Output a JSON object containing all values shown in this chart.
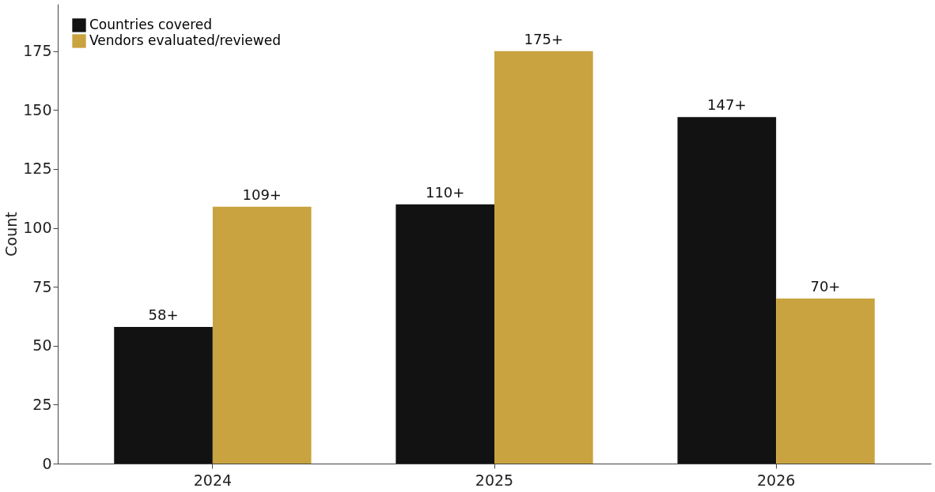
{
  "chart_data": {
    "type": "bar",
    "ylabel": "Count",
    "categories": [
      "2024",
      "2025",
      "2026"
    ],
    "series": [
      {
        "name": "Countries covered",
        "color": "#121212",
        "values": [
          58,
          110,
          147
        ],
        "value_labels": [
          "58+",
          "110+",
          "147+"
        ]
      },
      {
        "name": "Vendors evaluated/reviewed",
        "color": "#c8a33f",
        "values": [
          109,
          175,
          70
        ],
        "value_labels": [
          "109+",
          "175+",
          "70+"
        ]
      }
    ],
    "ylim": [
      0,
      195
    ],
    "yticks": [
      0,
      25,
      50,
      75,
      100,
      125,
      150,
      175
    ],
    "grid": false,
    "legend": "top left"
  }
}
